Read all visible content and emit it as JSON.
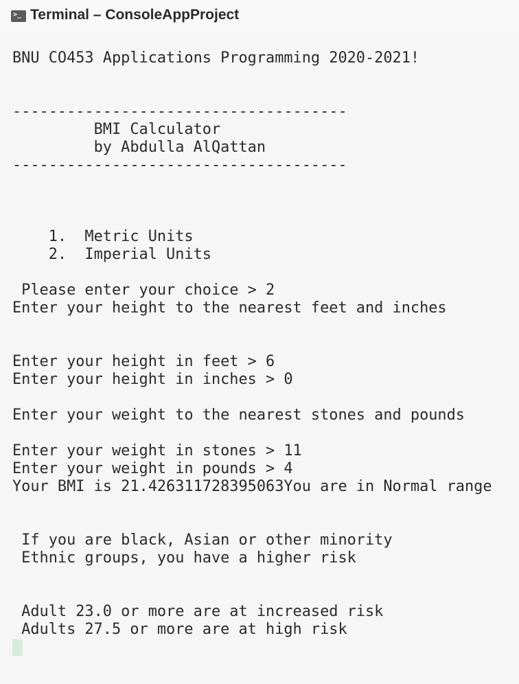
{
  "header": {
    "title": "Terminal – ConsoleAppProject"
  },
  "terminal": {
    "lines": [
      "BNU CO453 Applications Programming 2020-2021!",
      "-------------------------------------",
      "         BMI Calculator",
      "         by Abdulla AlQattan",
      "-------------------------------------",
      "    1.  Metric Units",
      "    2.  Imperial Units",
      " Please enter your choice > 2",
      "Enter your height to the nearest feet and inches",
      "Enter your height in feet > 6",
      "Enter your height in inches > 0",
      "Enter your weight to the nearest stones and pounds",
      "Enter your weight in stones > 11",
      "Enter your weight in pounds > 4",
      "Your BMI is 21.426311728395063You are in Normal range",
      " If you are black, Asian or other minority",
      " Ethnic groups, you have a higher risk",
      " Adult 23.0 or more are at increased risk",
      " Adults 27.5 or more are at high risk"
    ]
  }
}
